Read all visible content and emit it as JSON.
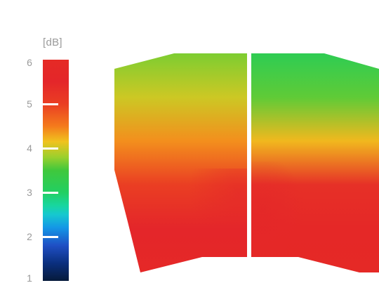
{
  "chart_data": {
    "type": "heatmap",
    "unit_label": "[dB]",
    "colorbar": {
      "min": 1,
      "max": 6,
      "ticks": [
        {
          "value": 6,
          "label": "6",
          "line": false
        },
        {
          "value": 5,
          "label": "5",
          "line": true
        },
        {
          "value": 4,
          "label": "4",
          "line": true
        },
        {
          "value": 3,
          "label": "3",
          "line": true
        },
        {
          "value": 2,
          "label": "2",
          "line": true
        },
        {
          "value": 1,
          "label": "1",
          "line": false
        }
      ]
    },
    "panels": [
      {
        "name": "left",
        "values_top_to_bottom": [
          3.7,
          4.0,
          4.4,
          5.0,
          5.5,
          5.8
        ]
      },
      {
        "name": "right",
        "values_top_to_bottom": [
          3.2,
          3.6,
          4.2,
          5.3,
          5.8,
          5.9
        ]
      }
    ]
  }
}
